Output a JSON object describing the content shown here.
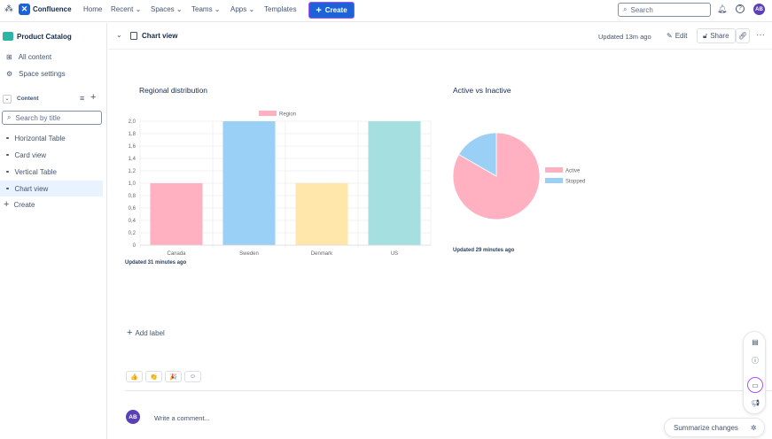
{
  "topnav": {
    "app_name": "Confluence",
    "items": [
      "Home",
      "Recent",
      "Spaces",
      "Teams",
      "Apps",
      "Templates"
    ],
    "create_label": "Create",
    "search_placeholder": "Search",
    "avatar": "AB"
  },
  "sidebar": {
    "space_name": "Product Catalog",
    "all_content": "All content",
    "space_settings": "Space settings",
    "content_label": "Content",
    "search_placeholder": "Search by title",
    "pages": [
      "Horizontal Table",
      "Card view",
      "Vertical Table",
      "Chart view"
    ],
    "selected_page": "Chart view",
    "create_label": "Create"
  },
  "header": {
    "page_title": "Chart view",
    "updated": "Updated 13m ago",
    "edit_label": "Edit",
    "share_label": "Share"
  },
  "chart_data": [
    {
      "type": "bar",
      "title": "Regional distribution",
      "categories": [
        "Canada",
        "Sweden",
        "Denmark",
        "US"
      ],
      "series": [
        {
          "name": "Region",
          "values": [
            1,
            2,
            1,
            2
          ]
        }
      ],
      "colors": [
        "#ffb1c1",
        "#9ad0f5",
        "#ffe6aa",
        "#a5dfdf"
      ],
      "ylim": [
        0,
        2
      ],
      "yticks": [
        "0",
        "0,2",
        "0,4",
        "0,6",
        "0,8",
        "1,0",
        "1,2",
        "1,4",
        "1,6",
        "1,8",
        "2,0"
      ],
      "legend": "top",
      "grid": true,
      "updated": "Updated 31 minutes ago"
    },
    {
      "type": "pie",
      "title": "Active vs Inactive",
      "labels": [
        "Active",
        "Stopped"
      ],
      "values": [
        5,
        1
      ],
      "colors": [
        "#ffb1c1",
        "#9ad0f5"
      ],
      "legend": "right",
      "updated": "Updated 29 minutes ago"
    }
  ],
  "footer": {
    "add_label": "Add label",
    "comment_placeholder": "Write a comment...",
    "avatar": "AB",
    "summarize_label": "Summarize changes",
    "reactions": [
      "👍",
      "👏",
      "🎉",
      "☺"
    ]
  }
}
